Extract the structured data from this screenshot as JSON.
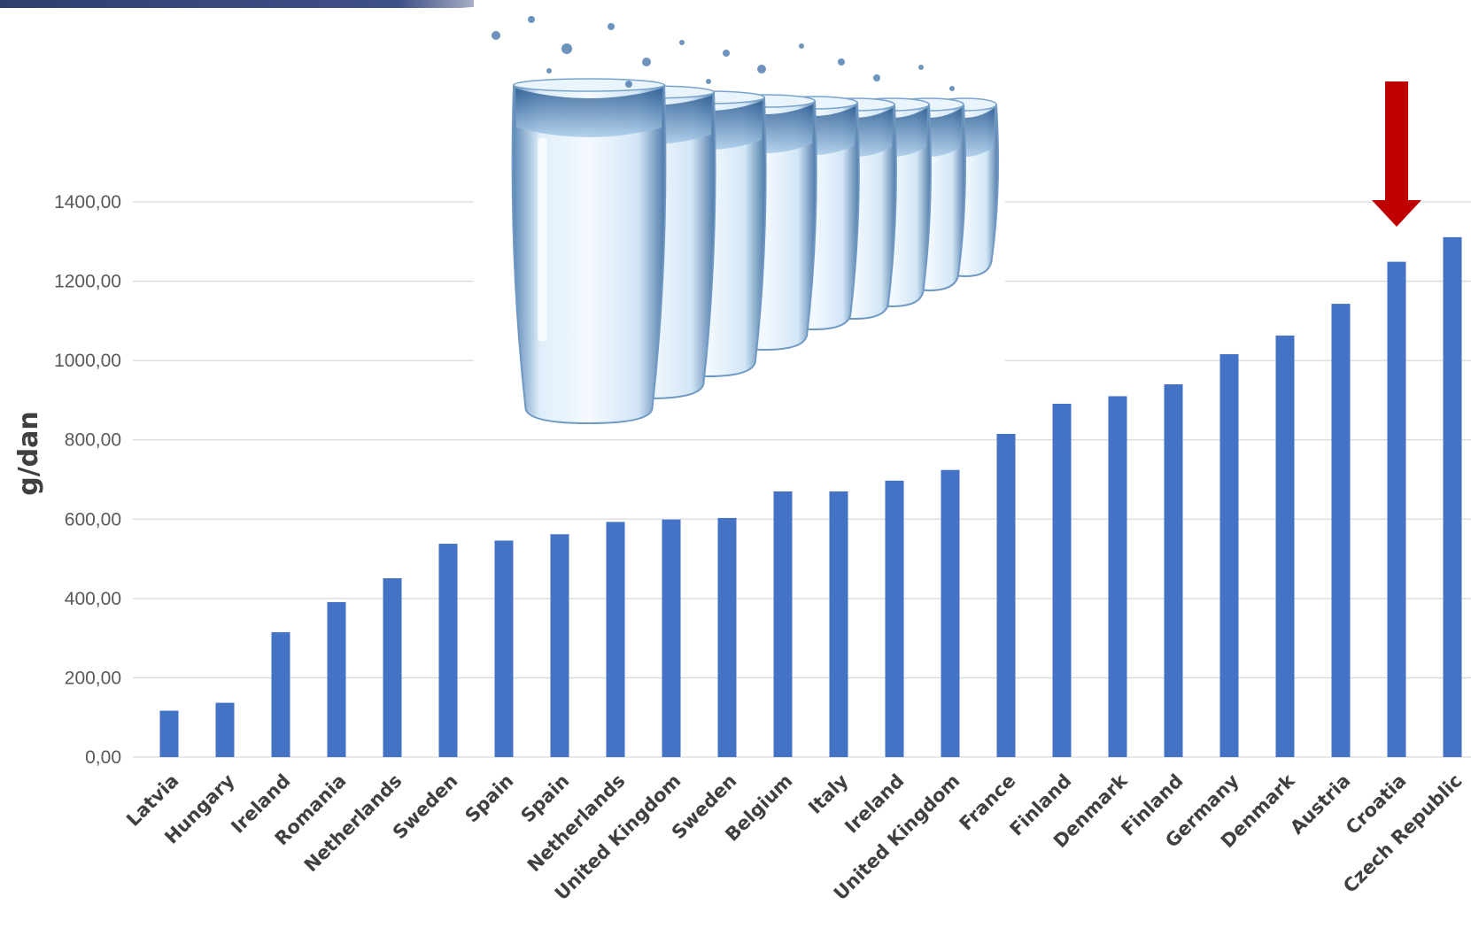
{
  "chart_data": {
    "type": "bar",
    "ylabel": "g/dan",
    "xlabel": "",
    "title": "",
    "ylim": [
      0,
      1400
    ],
    "yticks": [
      "0,00",
      "200,00",
      "400,00",
      "600,00",
      "800,00",
      "1000,00",
      "1200,00",
      "1400,00"
    ],
    "yticks_values": [
      0,
      200,
      400,
      600,
      800,
      1000,
      1200,
      1400
    ],
    "grid": true,
    "legend": "none",
    "bar_color": "#4472c4",
    "categories": [
      "Latvia",
      "Hungary",
      "Ireland",
      "Romania",
      "Netherlands",
      "Sweden",
      "Spain",
      "Spain",
      "Netherlands",
      "United Kingdom",
      "Sweden",
      "Belgium",
      "Italy",
      "Ireland",
      "United Kingdom",
      "France",
      "Finland",
      "Denmark",
      "Finland",
      "Germany",
      "Denmark",
      "Austria",
      "Croatia",
      "Czech Republic"
    ],
    "values": [
      117,
      137,
      315,
      391,
      451,
      538,
      546,
      562,
      593,
      599,
      603,
      670,
      670,
      697,
      724,
      815,
      891,
      910,
      940,
      1016,
      1063,
      1143,
      1249,
      1311
    ],
    "highlight": {
      "category_index": 22,
      "marker": "red-down-arrow",
      "color": "#c00000"
    }
  },
  "decoration": {
    "image": "row-of-water-glasses-image",
    "top_band_color": "#2f3f6f"
  }
}
